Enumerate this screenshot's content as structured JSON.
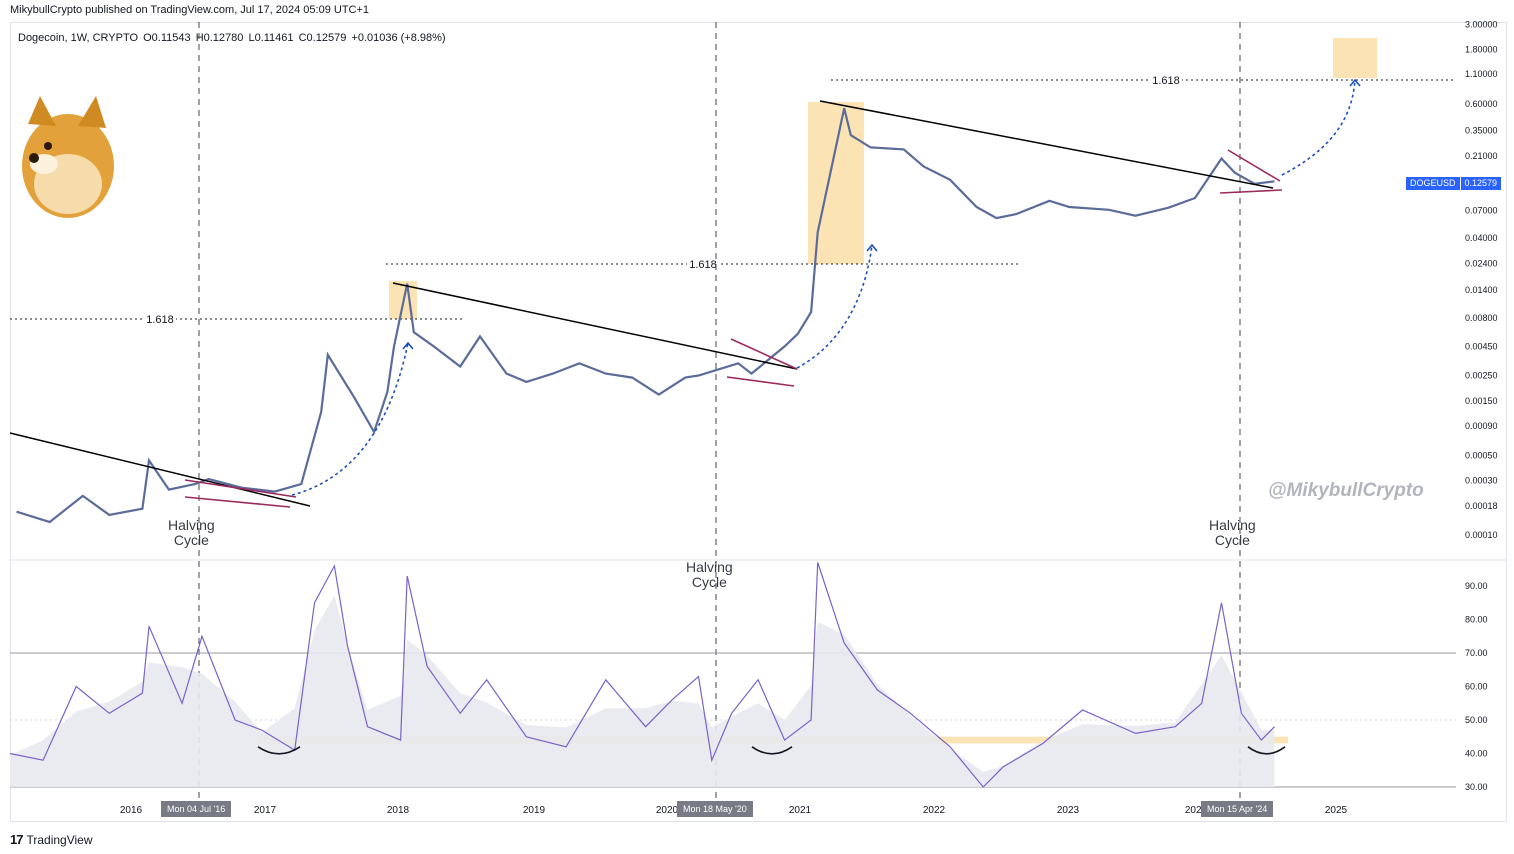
{
  "header": {
    "published": "MikybullCrypto published on TradingView.com, Jul 17, 2024 05:09 UTC+1",
    "symbol": "Dogecoin, 1W, CRYPTO",
    "open": "O0.11543",
    "high": "H0.12780",
    "low": "L0.11461",
    "close": "C0.12579",
    "change": "+0.01036 (+8.98%)"
  },
  "ticker": {
    "symbol": "DOGEUSD",
    "price": "0.12579"
  },
  "watermark": "@MikybullCrypto",
  "footer_logo": "TradingView",
  "halving_label": [
    "Halving",
    "Cycle"
  ],
  "date_badges": [
    "Mon 04 Jul '16",
    "Mon 18 May '20",
    "Mon 15 Apr '24"
  ],
  "fib_label": "1.618",
  "colors": {
    "candle": "#5b6c9a",
    "trend": "#000000",
    "wedge": "#9c2a5e",
    "arrow": "#1f4fbf",
    "rsi": "#7b61c9",
    "highlight": "#fbe3b4",
    "ticker_bg": "#2962ff"
  },
  "chart_data": [
    {
      "type": "line",
      "title": "Dogecoin, 1W, CRYPTO",
      "ylabel": "DOGEUSD",
      "scale": "log",
      "ylim": [
        6e-05,
        3.0
      ],
      "y_ticks": [
        "3.00000",
        "1.80000",
        "1.10000",
        "0.60000",
        "0.35000",
        "0.21000",
        "0.12000",
        "0.07000",
        "0.04000",
        "0.02400",
        "0.01400",
        "0.00800",
        "0.00450",
        "0.00250",
        "0.00150",
        "0.00090",
        "0.00050",
        "0.00030",
        "0.00018",
        "0.00010"
      ],
      "x_ticks": [
        "2016",
        "2017",
        "2018",
        "2019",
        "2020",
        "2021",
        "2022",
        "2023",
        "2024",
        "2025"
      ],
      "series": [
        {
          "x": [
            2015.05,
            2015.3,
            2015.55,
            2015.75,
            2016.0,
            2016.05,
            2016.2,
            2016.4,
            2016.5,
            2016.75,
            2017.0,
            2017.2,
            2017.35,
            2017.4,
            2017.6,
            2017.75,
            2017.85,
            2017.9,
            2018.0,
            2018.05,
            2018.2,
            2018.4,
            2018.55,
            2018.75,
            2018.9,
            2019.1,
            2019.3,
            2019.5,
            2019.7,
            2019.9,
            2020.1,
            2020.2,
            2020.5,
            2020.6,
            2020.85,
            2020.95,
            2021.05,
            2021.1,
            2021.3,
            2021.35,
            2021.5,
            2021.75,
            2021.9,
            2022.1,
            2022.3,
            2022.45,
            2022.6,
            2022.85,
            2023.0,
            2023.3,
            2023.5,
            2023.75,
            2023.95,
            2024.15,
            2024.25,
            2024.4,
            2024.55
          ],
          "values": [
            0.00016,
            0.00013,
            0.00022,
            0.00015,
            0.00017,
            0.00045,
            0.00025,
            0.00028,
            0.00031,
            0.00026,
            0.00024,
            0.00028,
            0.0012,
            0.0038,
            0.0016,
            0.0008,
            0.0018,
            0.0045,
            0.016,
            0.006,
            0.0045,
            0.003,
            0.0055,
            0.0026,
            0.0022,
            0.0026,
            0.0032,
            0.0026,
            0.0024,
            0.0017,
            0.0024,
            0.0025,
            0.0032,
            0.0026,
            0.0045,
            0.0058,
            0.009,
            0.045,
            0.55,
            0.32,
            0.25,
            0.24,
            0.17,
            0.13,
            0.075,
            0.06,
            0.065,
            0.085,
            0.075,
            0.071,
            0.063,
            0.074,
            0.09,
            0.2,
            0.15,
            0.12,
            0.126
          ]
        }
      ],
      "annotations": [
        "1.618",
        "1.618",
        "1.618",
        "Halving Cycle",
        "Halving Cycle",
        "Halving Cycle",
        "@MikybullCrypto"
      ]
    },
    {
      "type": "line",
      "title": "RSI",
      "ylim": [
        28,
        100
      ],
      "y_ticks": [
        "90.00",
        "80.00",
        "70.00",
        "60.00",
        "50.00",
        "40.00",
        "30.00"
      ],
      "reference_lines": [
        70,
        50,
        30
      ],
      "support_band": [
        43,
        45
      ],
      "series": [
        {
          "x": [
            2015.0,
            2015.25,
            2015.5,
            2015.75,
            2016.0,
            2016.05,
            2016.3,
            2016.45,
            2016.7,
            2016.9,
            2017.15,
            2017.3,
            2017.45,
            2017.55,
            2017.7,
            2017.95,
            2018.0,
            2018.15,
            2018.4,
            2018.6,
            2018.9,
            2019.2,
            2019.5,
            2019.8,
            2020.0,
            2020.2,
            2020.3,
            2020.45,
            2020.65,
            2020.85,
            2021.05,
            2021.1,
            2021.3,
            2021.55,
            2021.8,
            2022.1,
            2022.35,
            2022.5,
            2022.8,
            2023.1,
            2023.5,
            2023.8,
            2024.0,
            2024.15,
            2024.3,
            2024.45,
            2024.55
          ],
          "values": [
            40,
            38,
            60,
            52,
            58,
            78,
            55,
            75,
            50,
            47,
            41,
            85,
            96,
            72,
            48,
            44,
            93,
            66,
            52,
            62,
            45,
            42,
            62,
            48,
            56,
            63,
            38,
            52,
            62,
            44,
            50,
            97,
            73,
            59,
            52,
            42,
            30,
            36,
            43,
            53,
            46,
            48,
            55,
            85,
            52,
            44,
            48
          ]
        }
      ]
    }
  ]
}
